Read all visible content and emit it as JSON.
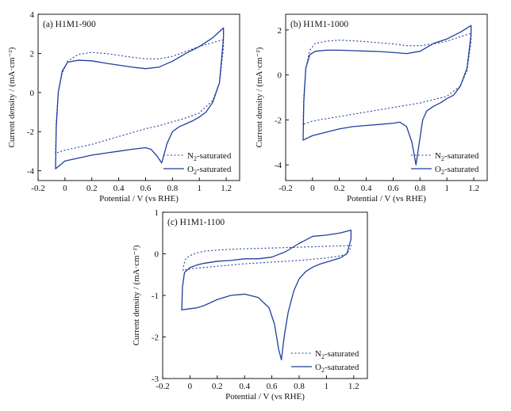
{
  "colors": {
    "curve": "#1f3f9e",
    "axis": "#000000"
  },
  "chart_data": [
    {
      "type": "line",
      "title": "(a) H1M1-900",
      "xlabel": "Potential / V (vs RHE)",
      "ylabel": "Current density / (mA·cm⁻²)",
      "xlim": [
        -0.2,
        1.3
      ],
      "ylim": [
        -4.5,
        4
      ],
      "xticks": [
        -0.2,
        0.0,
        0.2,
        0.4,
        0.6,
        0.8,
        1.0,
        1.2
      ],
      "yticks": [
        -4,
        -2,
        0,
        2,
        4
      ],
      "legend_position": "bottom-right",
      "series": [
        {
          "name": "N2-saturated",
          "style": "dotted",
          "x": [
            -0.07,
            -0.065,
            -0.05,
            -0.02,
            0.02,
            0.1,
            0.2,
            0.3,
            0.4,
            0.5,
            0.6,
            0.7,
            0.8,
            0.9,
            1.0,
            1.1,
            1.18,
            1.18,
            1.15,
            1.1,
            1.0,
            0.9,
            0.8,
            0.7,
            0.6,
            0.5,
            0.4,
            0.3,
            0.2,
            0.1,
            0.0,
            -0.07
          ],
          "y": [
            -3.1,
            -1.5,
            0.0,
            1.0,
            1.6,
            1.95,
            2.05,
            2.0,
            1.9,
            1.8,
            1.72,
            1.72,
            1.85,
            2.1,
            2.35,
            2.55,
            2.7,
            2.3,
            0.5,
            -0.4,
            -1.05,
            -1.3,
            -1.5,
            -1.7,
            -1.85,
            -2.05,
            -2.25,
            -2.45,
            -2.65,
            -2.8,
            -2.95,
            -3.1
          ]
        },
        {
          "name": "O2-saturated",
          "style": "solid",
          "x": [
            -0.07,
            -0.065,
            -0.05,
            -0.02,
            0.02,
            0.1,
            0.2,
            0.3,
            0.4,
            0.5,
            0.6,
            0.7,
            0.8,
            0.9,
            1.0,
            1.1,
            1.18,
            1.18,
            1.15,
            1.1,
            1.05,
            1.0,
            0.95,
            0.9,
            0.85,
            0.8,
            0.76,
            0.72,
            0.68,
            0.64,
            0.6,
            0.5,
            0.4,
            0.3,
            0.2,
            0.1,
            0.0,
            -0.07
          ],
          "y": [
            -3.9,
            -1.8,
            0.0,
            1.1,
            1.55,
            1.65,
            1.62,
            1.5,
            1.4,
            1.3,
            1.22,
            1.3,
            1.6,
            2.0,
            2.35,
            2.8,
            3.3,
            2.8,
            0.5,
            -0.5,
            -1.0,
            -1.25,
            -1.45,
            -1.6,
            -1.75,
            -2.0,
            -2.6,
            -3.6,
            -3.2,
            -2.9,
            -2.82,
            -2.9,
            -3.0,
            -3.1,
            -3.2,
            -3.35,
            -3.5,
            -3.9
          ]
        }
      ]
    },
    {
      "type": "line",
      "title": "(b) H1M1-1000",
      "xlabel": "Potential / V (vs RHE)",
      "ylabel": "Current density / (mA·cm⁻²)",
      "xlim": [
        -0.2,
        1.3
      ],
      "ylim": [
        -4.7,
        2.7
      ],
      "xticks": [
        -0.2,
        0.0,
        0.2,
        0.4,
        0.6,
        0.8,
        1.0,
        1.2
      ],
      "yticks": [
        -4,
        -2,
        0,
        2
      ],
      "legend_position": "bottom-right",
      "series": [
        {
          "name": "N2-saturated",
          "style": "dotted",
          "x": [
            -0.07,
            -0.065,
            -0.05,
            -0.02,
            0.02,
            0.1,
            0.2,
            0.3,
            0.4,
            0.5,
            0.6,
            0.7,
            0.8,
            0.9,
            1.0,
            1.1,
            1.18,
            1.18,
            1.15,
            1.1,
            1.0,
            0.9,
            0.8,
            0.7,
            0.6,
            0.5,
            0.4,
            0.3,
            0.2,
            0.1,
            0.0,
            -0.07
          ],
          "y": [
            -2.2,
            -1.0,
            0.3,
            1.1,
            1.4,
            1.5,
            1.55,
            1.52,
            1.48,
            1.43,
            1.38,
            1.3,
            1.3,
            1.38,
            1.5,
            1.7,
            1.85,
            1.5,
            0.2,
            -0.5,
            -0.95,
            -1.1,
            -1.25,
            -1.35,
            -1.45,
            -1.55,
            -1.65,
            -1.75,
            -1.85,
            -1.95,
            -2.05,
            -2.2
          ]
        },
        {
          "name": "O2-saturated",
          "style": "solid",
          "x": [
            -0.07,
            -0.065,
            -0.05,
            -0.02,
            0.02,
            0.1,
            0.2,
            0.3,
            0.4,
            0.5,
            0.6,
            0.7,
            0.8,
            0.9,
            1.0,
            1.1,
            1.18,
            1.18,
            1.15,
            1.1,
            1.05,
            1.0,
            0.95,
            0.9,
            0.85,
            0.82,
            0.79,
            0.77,
            0.74,
            0.7,
            0.65,
            0.6,
            0.5,
            0.4,
            0.3,
            0.2,
            0.1,
            0.0,
            -0.07
          ],
          "y": [
            -2.9,
            -1.2,
            0.3,
            0.9,
            1.05,
            1.1,
            1.1,
            1.08,
            1.06,
            1.04,
            1.0,
            0.95,
            1.05,
            1.4,
            1.6,
            1.9,
            2.2,
            1.8,
            0.3,
            -0.5,
            -0.9,
            -1.05,
            -1.25,
            -1.4,
            -1.6,
            -2.0,
            -3.2,
            -4.0,
            -3.0,
            -2.3,
            -2.1,
            -2.15,
            -2.2,
            -2.25,
            -2.3,
            -2.4,
            -2.55,
            -2.7,
            -2.9
          ]
        }
      ]
    },
    {
      "type": "line",
      "title": "(c) H1M1-1100",
      "xlabel": "Potential / V (vs RHE)",
      "ylabel": "Current density / (mA·cm⁻²)",
      "xlim": [
        -0.2,
        1.3
      ],
      "ylim": [
        -3,
        1
      ],
      "xticks": [
        -0.2,
        0.0,
        0.2,
        0.4,
        0.6,
        0.8,
        1.0,
        1.2
      ],
      "yticks": [
        -3,
        -2,
        -1,
        0,
        1
      ],
      "legend_position": "bottom-right",
      "series": [
        {
          "name": "N2-saturated",
          "style": "dotted",
          "x": [
            -0.05,
            -0.045,
            -0.03,
            0.0,
            0.05,
            0.1,
            0.2,
            0.3,
            0.4,
            0.5,
            0.6,
            0.7,
            0.8,
            0.9,
            1.0,
            1.1,
            1.18,
            1.18,
            1.15,
            1.1,
            1.0,
            0.9,
            0.8,
            0.7,
            0.6,
            0.5,
            0.4,
            0.3,
            0.2,
            0.1,
            0.0,
            -0.05
          ],
          "y": [
            -0.4,
            -0.25,
            -0.12,
            -0.04,
            0.02,
            0.06,
            0.09,
            0.11,
            0.12,
            0.13,
            0.14,
            0.15,
            0.16,
            0.17,
            0.18,
            0.19,
            0.2,
            0.15,
            0.0,
            -0.05,
            -0.1,
            -0.13,
            -0.16,
            -0.18,
            -0.2,
            -0.22,
            -0.24,
            -0.27,
            -0.3,
            -0.33,
            -0.36,
            -0.4
          ]
        },
        {
          "name": "O2-saturated",
          "style": "solid",
          "x": [
            -0.06,
            -0.055,
            -0.04,
            0.0,
            0.05,
            0.1,
            0.2,
            0.3,
            0.4,
            0.5,
            0.6,
            0.7,
            0.8,
            0.9,
            1.0,
            1.1,
            1.18,
            1.18,
            1.15,
            1.1,
            1.05,
            1.0,
            0.95,
            0.9,
            0.85,
            0.8,
            0.76,
            0.72,
            0.69,
            0.67,
            0.65,
            0.62,
            0.58,
            0.5,
            0.4,
            0.3,
            0.2,
            0.1,
            0.05,
            0.0,
            -0.06
          ],
          "y": [
            -1.35,
            -0.8,
            -0.45,
            -0.33,
            -0.27,
            -0.23,
            -0.18,
            -0.16,
            -0.12,
            -0.12,
            -0.08,
            0.05,
            0.25,
            0.42,
            0.45,
            0.5,
            0.57,
            0.35,
            0.0,
            -0.1,
            -0.15,
            -0.2,
            -0.25,
            -0.32,
            -0.42,
            -0.6,
            -0.9,
            -1.4,
            -2.0,
            -2.55,
            -2.3,
            -1.7,
            -1.3,
            -1.05,
            -0.97,
            -1.0,
            -1.1,
            -1.25,
            -1.3,
            -1.32,
            -1.35
          ]
        }
      ]
    }
  ]
}
